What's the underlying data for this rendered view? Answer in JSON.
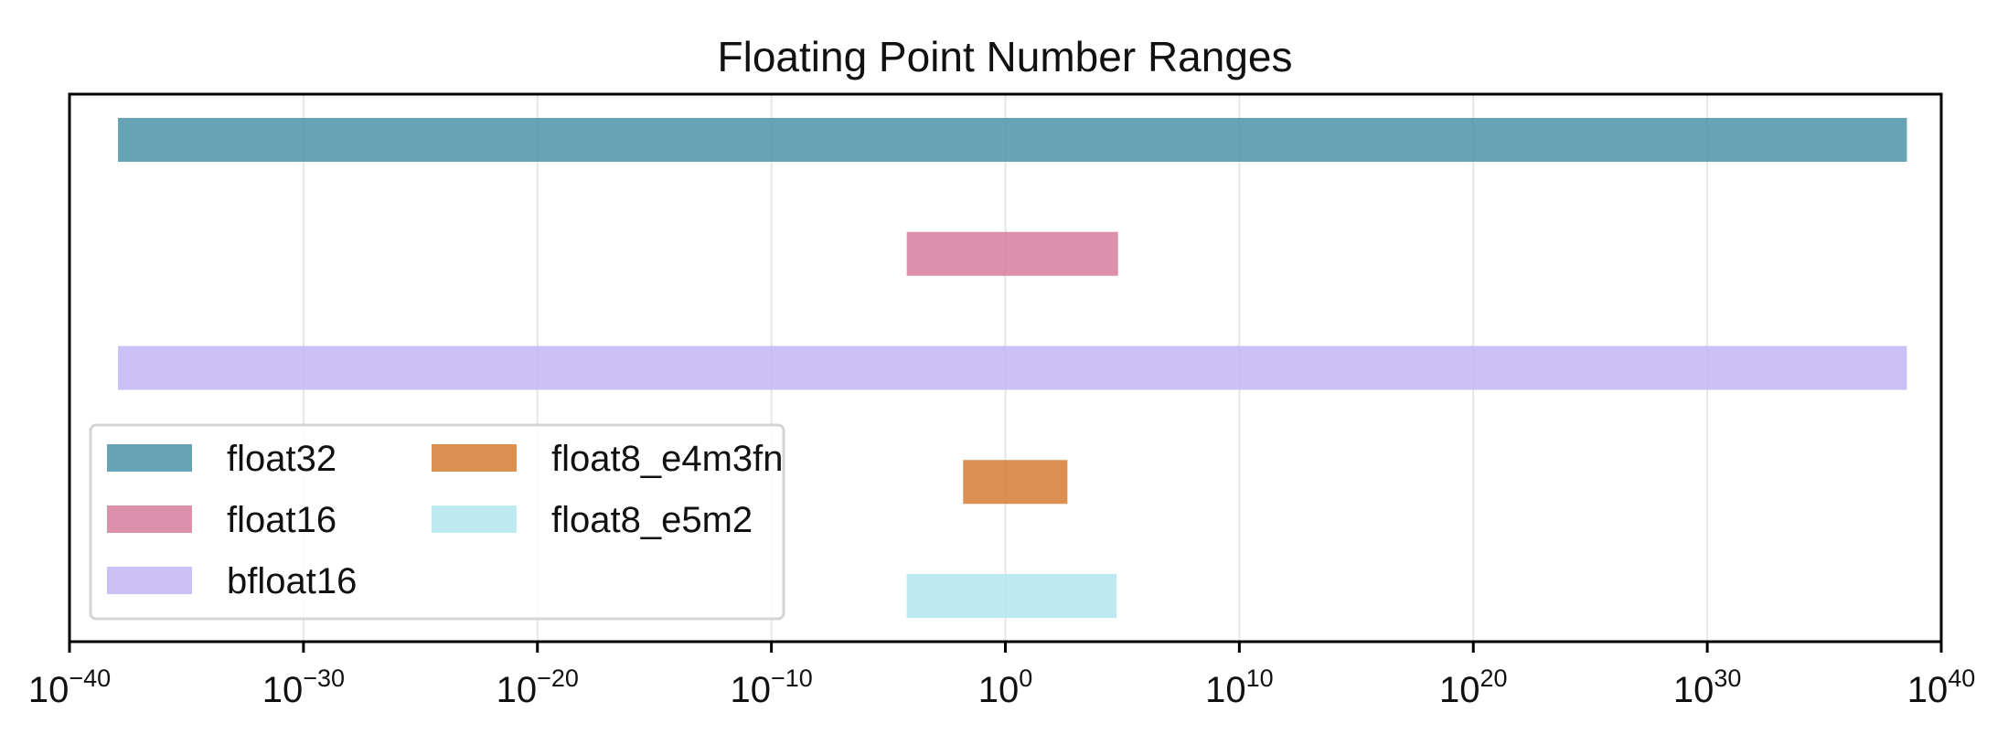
{
  "chart_data": {
    "type": "bar",
    "orientation": "horizontal",
    "title": "Floating Point Number Ranges",
    "xlabel": "",
    "ylabel": "",
    "x_scale": "log",
    "xlim": [
      1e-40,
      1e+40
    ],
    "x_ticks": [
      {
        "base": "10",
        "exp": "−40",
        "value": 1e-40
      },
      {
        "base": "10",
        "exp": "−30",
        "value": 1e-30
      },
      {
        "base": "10",
        "exp": "−20",
        "value": 1e-20
      },
      {
        "base": "10",
        "exp": "−10",
        "value": 1e-10
      },
      {
        "base": "10",
        "exp": "0",
        "value": 1
      },
      {
        "base": "10",
        "exp": "10",
        "value": 10000000000.0
      },
      {
        "base": "10",
        "exp": "20",
        "value": 1e+20
      },
      {
        "base": "10",
        "exp": "30",
        "value": 1e+30
      },
      {
        "base": "10",
        "exp": "40",
        "value": 1e+40
      }
    ],
    "grid": true,
    "legend_position": "lower-left",
    "series": [
      {
        "name": "float32",
        "min": 1.18e-38,
        "max": 3.4e+38,
        "color": "#4b93a8"
      },
      {
        "name": "float16",
        "min": 6.1e-05,
        "max": 65504,
        "color": "#d77c9c"
      },
      {
        "name": "bfloat16",
        "min": 1.18e-38,
        "max": 3.39e+38,
        "color": "#c3b6f4"
      },
      {
        "name": "float8_e4m3fn",
        "min": 0.0156,
        "max": 448,
        "color": "#d57d33"
      },
      {
        "name": "float8_e5m2",
        "min": 6.1e-05,
        "max": 57344,
        "color": "#b1e6ee"
      }
    ],
    "legend": [
      {
        "name": "float32",
        "color": "#4b93a8"
      },
      {
        "name": "float16",
        "color": "#d77c9c"
      },
      {
        "name": "bfloat16",
        "color": "#c3b6f4"
      },
      {
        "name": "float8_e4m3fn",
        "color": "#d57d33"
      },
      {
        "name": "float8_e5m2",
        "color": "#b1e6ee"
      }
    ]
  }
}
